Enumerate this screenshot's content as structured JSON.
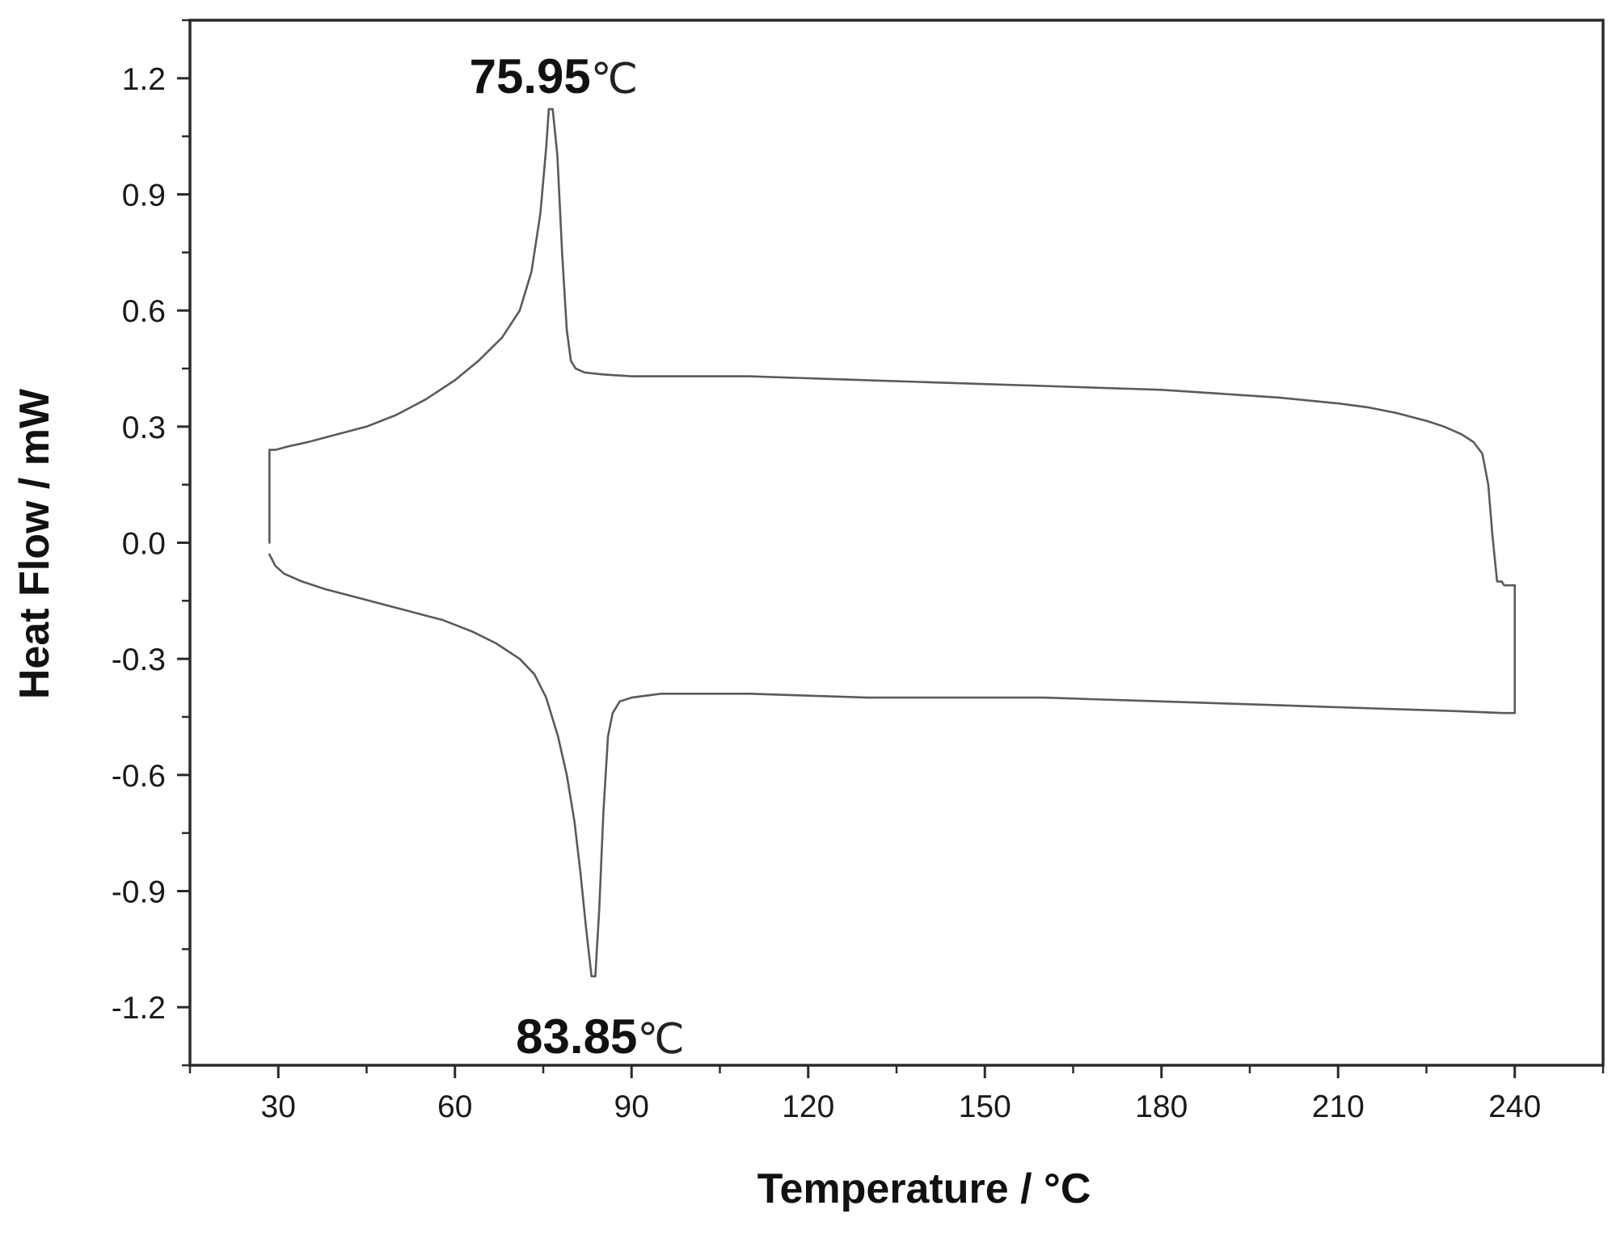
{
  "chart_data": {
    "type": "line",
    "title": "",
    "xlabel": "Temperature / °C",
    "ylabel": "Heat Flow / mW",
    "xlim": [
      15,
      255
    ],
    "ylim": [
      -1.35,
      1.35
    ],
    "x_ticks": [
      {
        "value": 30,
        "label": "30"
      },
      {
        "value": 60,
        "label": "60"
      },
      {
        "value": 90,
        "label": "90"
      },
      {
        "value": 120,
        "label": "120"
      },
      {
        "value": 150,
        "label": "150"
      },
      {
        "value": 180,
        "label": "180"
      },
      {
        "value": 210,
        "label": "210"
      },
      {
        "value": 240,
        "label": "240"
      }
    ],
    "y_ticks": [
      {
        "value": 1.2,
        "label": "1.2"
      },
      {
        "value": 0.9,
        "label": "0.9"
      },
      {
        "value": 0.6,
        "label": "0.6"
      },
      {
        "value": 0.3,
        "label": "0.3"
      },
      {
        "value": 0.0,
        "label": "0.0"
      },
      {
        "value": -0.3,
        "label": "-0.3"
      },
      {
        "value": -0.6,
        "label": "-0.6"
      },
      {
        "value": -0.9,
        "label": "-0.9"
      },
      {
        "value": -1.2,
        "label": "-1.2"
      }
    ],
    "grid": false,
    "line_color": "#5a5a5a",
    "series": [
      {
        "x": [
          28.5,
          28.5,
          29.5,
          32,
          35,
          40,
          45,
          50,
          55,
          60,
          64,
          68,
          71,
          73,
          74.5,
          75.5,
          75.95,
          76.6,
          77.4,
          78.2,
          79,
          79.7,
          80.5,
          82,
          85,
          90,
          100,
          110,
          120,
          130,
          140,
          150,
          160,
          170,
          180,
          190,
          200,
          210,
          215,
          220,
          225,
          228,
          231,
          233,
          234.5,
          235.5,
          236.2,
          237,
          237.8,
          238.2,
          240,
          240,
          238,
          230,
          220,
          210,
          200,
          190,
          180,
          170,
          160,
          150,
          140,
          130,
          120,
          110,
          100,
          95,
          90,
          88,
          86.8,
          86,
          85.2,
          84.5,
          84,
          83.85,
          83.2,
          82.3,
          81.3,
          80.3,
          79,
          77.5,
          75.5,
          73.5,
          71,
          67,
          63,
          58,
          53,
          48,
          43,
          38,
          34,
          31,
          29.5,
          28.5
        ],
        "y": [
          0.0,
          0.24,
          0.24,
          0.25,
          0.26,
          0.28,
          0.3,
          0.33,
          0.37,
          0.42,
          0.47,
          0.53,
          0.6,
          0.7,
          0.85,
          1.02,
          1.12,
          1.12,
          1.0,
          0.75,
          0.55,
          0.47,
          0.45,
          0.44,
          0.435,
          0.43,
          0.43,
          0.43,
          0.425,
          0.42,
          0.415,
          0.41,
          0.405,
          0.4,
          0.395,
          0.385,
          0.375,
          0.36,
          0.35,
          0.335,
          0.315,
          0.3,
          0.28,
          0.26,
          0.23,
          0.15,
          0.02,
          -0.1,
          -0.1,
          -0.11,
          -0.11,
          -0.44,
          -0.44,
          -0.435,
          -0.43,
          -0.425,
          -0.42,
          -0.415,
          -0.41,
          -0.405,
          -0.4,
          -0.4,
          -0.4,
          -0.4,
          -0.395,
          -0.39,
          -0.39,
          -0.39,
          -0.4,
          -0.41,
          -0.44,
          -0.5,
          -0.7,
          -0.95,
          -1.08,
          -1.12,
          -1.12,
          -1.0,
          -0.85,
          -0.72,
          -0.6,
          -0.5,
          -0.4,
          -0.34,
          -0.3,
          -0.26,
          -0.23,
          -0.2,
          -0.18,
          -0.16,
          -0.14,
          -0.12,
          -0.1,
          -0.08,
          -0.06,
          -0.03
        ]
      }
    ],
    "annotations": [
      {
        "x": 75.95,
        "y": 1.12,
        "value": "75.95",
        "unit": "℃",
        "position": "above"
      },
      {
        "x": 83.85,
        "y": -1.12,
        "value": "83.85",
        "unit": "℃",
        "position": "below"
      }
    ]
  }
}
